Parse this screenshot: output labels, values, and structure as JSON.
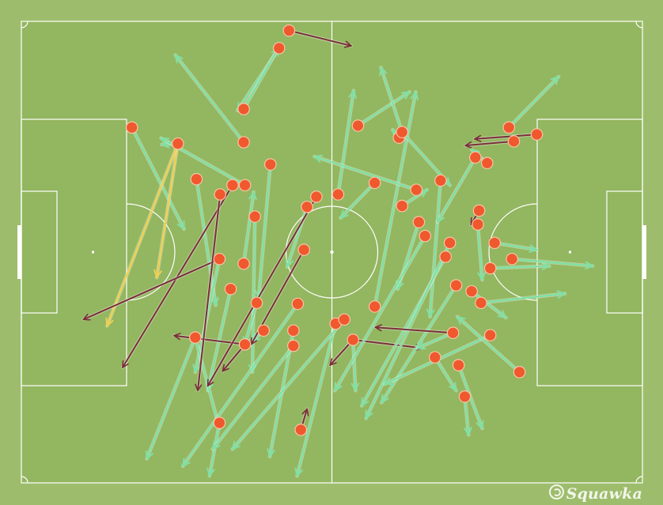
{
  "brand": {
    "watermark": "Squawka"
  },
  "colors": {
    "page_bg": "#9dbd6c",
    "pitch": "#93b660",
    "lines": "#ffffff",
    "successful_pass": "#7fe0a4",
    "unsuccessful_pass": "#7a2e3a",
    "key_pass": "#f0cf52",
    "origin_marker": "#f0582e"
  },
  "chart_data": {
    "type": "pass-map",
    "x_range": [
      0,
      100
    ],
    "y_range": [
      0,
      100
    ],
    "legend": "none",
    "passes": [
      {
        "x1": 43.1,
        "y1": 2.0,
        "x2": 53.1,
        "y2": 5.3,
        "outcome": "unsuccessful"
      },
      {
        "x1": 41.5,
        "y1": 5.8,
        "x2": 34.8,
        "y2": 19.3,
        "outcome": "successful"
      },
      {
        "x1": 35.8,
        "y1": 19.0,
        "x2": 41.4,
        "y2": 5.8,
        "outcome": "successful"
      },
      {
        "x1": 35.8,
        "y1": 26.2,
        "x2": 24.8,
        "y2": 7.3,
        "outcome": "successful"
      },
      {
        "x1": 17.8,
        "y1": 23.0,
        "x2": 26.2,
        "y2": 45.0,
        "outcome": "successful"
      },
      {
        "x1": 25.2,
        "y1": 26.5,
        "x2": 22.6,
        "y2": 26.7,
        "outcome": "successful"
      },
      {
        "x1": 25.2,
        "y1": 26.5,
        "x2": 21.8,
        "y2": 55.5,
        "outcome": "key"
      },
      {
        "x1": 25.2,
        "y1": 26.5,
        "x2": 13.8,
        "y2": 66.0,
        "outcome": "key"
      },
      {
        "x1": 28.2,
        "y1": 34.2,
        "x2": 31.3,
        "y2": 61.5,
        "outcome": "successful"
      },
      {
        "x1": 34.0,
        "y1": 35.5,
        "x2": 16.3,
        "y2": 75.0,
        "outcome": "unsuccessful"
      },
      {
        "x1": 36.0,
        "y1": 35.5,
        "x2": 22.5,
        "y2": 25.3,
        "outcome": "successful"
      },
      {
        "x1": 40.1,
        "y1": 31.0,
        "x2": 38.2,
        "y2": 60.0,
        "outcome": "successful"
      },
      {
        "x1": 37.6,
        "y1": 42.3,
        "x2": 37.2,
        "y2": 76.0,
        "outcome": "successful"
      },
      {
        "x1": 31.9,
        "y1": 51.5,
        "x2": 10.0,
        "y2": 64.6,
        "outcome": "unsuccessful"
      },
      {
        "x1": 31.9,
        "y1": 51.5,
        "x2": 28.0,
        "y2": 76.0,
        "outcome": "successful"
      },
      {
        "x1": 35.8,
        "y1": 52.5,
        "x2": 37.4,
        "y2": 37.0,
        "outcome": "successful"
      },
      {
        "x1": 33.7,
        "y1": 58.0,
        "x2": 30.0,
        "y2": 80.0,
        "outcome": "successful"
      },
      {
        "x1": 36.0,
        "y1": 70.0,
        "x2": 24.6,
        "y2": 68.1,
        "outcome": "unsuccessful"
      },
      {
        "x1": 36.0,
        "y1": 70.0,
        "x2": 32.4,
        "y2": 75.8,
        "outcome": "unsuccessful"
      },
      {
        "x1": 37.9,
        "y1": 61.0,
        "x2": 36.0,
        "y2": 70.0,
        "outcome": "successful"
      },
      {
        "x1": 28.0,
        "y1": 68.5,
        "x2": 20.2,
        "y2": 94.8,
        "outcome": "successful"
      },
      {
        "x1": 28.0,
        "y1": 68.5,
        "x2": 31.9,
        "y2": 88.2,
        "outcome": "successful"
      },
      {
        "x1": 31.9,
        "y1": 87.0,
        "x2": 30.3,
        "y2": 98.5,
        "outcome": "successful"
      },
      {
        "x1": 32.0,
        "y1": 37.5,
        "x2": 28.4,
        "y2": 80.0,
        "outcome": "unsuccessful"
      },
      {
        "x1": 39.0,
        "y1": 67.0,
        "x2": 37.2,
        "y2": 69.3,
        "outcome": "successful"
      },
      {
        "x1": 43.8,
        "y1": 67.0,
        "x2": 40.0,
        "y2": 94.3,
        "outcome": "successful"
      },
      {
        "x1": 43.8,
        "y1": 70.3,
        "x2": 30.8,
        "y2": 92.7,
        "outcome": "successful"
      },
      {
        "x1": 46.0,
        "y1": 40.2,
        "x2": 42.8,
        "y2": 53.2,
        "outcome": "successful"
      },
      {
        "x1": 47.5,
        "y1": 38.0,
        "x2": 30.0,
        "y2": 79.0,
        "outcome": "unsuccessful"
      },
      {
        "x1": 45.5,
        "y1": 49.5,
        "x2": 37.0,
        "y2": 70.0,
        "outcome": "unsuccessful"
      },
      {
        "x1": 44.5,
        "y1": 61.2,
        "x2": 26.0,
        "y2": 96.4,
        "outcome": "successful"
      },
      {
        "x1": 51.0,
        "y1": 37.5,
        "x2": 53.5,
        "y2": 15.0,
        "outcome": "successful"
      },
      {
        "x1": 45.0,
        "y1": 88.5,
        "x2": 46.0,
        "y2": 84.0,
        "outcome": "unsuccessful"
      },
      {
        "x1": 50.6,
        "y1": 65.5,
        "x2": 44.4,
        "y2": 98.5,
        "outcome": "successful"
      },
      {
        "x1": 52.0,
        "y1": 64.6,
        "x2": 34.0,
        "y2": 92.7,
        "outcome": "successful"
      },
      {
        "x1": 56.9,
        "y1": 61.8,
        "x2": 63.5,
        "y2": 15.3,
        "outcome": "successful"
      },
      {
        "x1": 54.2,
        "y1": 22.6,
        "x2": 62.5,
        "y2": 15.3,
        "outcome": "successful"
      },
      {
        "x1": 53.4,
        "y1": 69.0,
        "x2": 49.7,
        "y2": 74.5,
        "outcome": "unsuccessful"
      },
      {
        "x1": 53.4,
        "y1": 69.0,
        "x2": 64.5,
        "y2": 70.8,
        "outcome": "unsuccessful"
      },
      {
        "x1": 53.4,
        "y1": 69.0,
        "x2": 53.8,
        "y2": 80.0,
        "outcome": "successful"
      },
      {
        "x1": 56.9,
        "y1": 35.0,
        "x2": 51.4,
        "y2": 42.6,
        "outcome": "successful"
      },
      {
        "x1": 60.8,
        "y1": 25.2,
        "x2": 59.8,
        "y2": 23.5,
        "outcome": "successful"
      },
      {
        "x1": 61.3,
        "y1": 24.0,
        "x2": 69.0,
        "y2": 35.5,
        "outcome": "successful"
      },
      {
        "x1": 61.3,
        "y1": 24.0,
        "x2": 57.9,
        "y2": 10.0,
        "outcome": "successful"
      },
      {
        "x1": 63.6,
        "y1": 36.5,
        "x2": 47.2,
        "y2": 29.3,
        "outcome": "successful"
      },
      {
        "x1": 61.3,
        "y1": 40.0,
        "x2": 65.3,
        "y2": 36.5,
        "outcome": "successful"
      },
      {
        "x1": 64.0,
        "y1": 43.5,
        "x2": 60.6,
        "y2": 58.0,
        "outcome": "successful"
      },
      {
        "x1": 65.0,
        "y1": 46.5,
        "x2": 50.5,
        "y2": 80.0,
        "outcome": "successful"
      },
      {
        "x1": 67.5,
        "y1": 34.5,
        "x2": 65.8,
        "y2": 64.0,
        "outcome": "successful"
      },
      {
        "x1": 68.3,
        "y1": 51.0,
        "x2": 54.8,
        "y2": 83.3,
        "outcome": "successful"
      },
      {
        "x1": 69.0,
        "y1": 48.0,
        "x2": 55.5,
        "y2": 86.0,
        "outcome": "successful"
      },
      {
        "x1": 70.0,
        "y1": 57.2,
        "x2": 58.0,
        "y2": 82.6,
        "outcome": "successful"
      },
      {
        "x1": 73.1,
        "y1": 29.5,
        "x2": 67.0,
        "y2": 43.5,
        "outcome": "successful"
      },
      {
        "x1": 73.5,
        "y1": 44.0,
        "x2": 74.2,
        "y2": 56.0,
        "outcome": "successful"
      },
      {
        "x1": 72.5,
        "y1": 58.5,
        "x2": 78.0,
        "y2": 64.2,
        "outcome": "successful"
      },
      {
        "x1": 79.3,
        "y1": 26.0,
        "x2": 71.5,
        "y2": 26.9,
        "outcome": "unsuccessful"
      },
      {
        "x1": 75.0,
        "y1": 30.7,
        "x2": 72.5,
        "y2": 27.8,
        "outcome": "successful"
      },
      {
        "x1": 73.7,
        "y1": 41.0,
        "x2": 72.4,
        "y2": 44.0,
        "outcome": "unsuccessful"
      },
      {
        "x1": 75.5,
        "y1": 53.5,
        "x2": 85.0,
        "y2": 53.0,
        "outcome": "successful"
      },
      {
        "x1": 69.5,
        "y1": 67.5,
        "x2": 57.0,
        "y2": 66.3,
        "outcome": "unsuccessful"
      },
      {
        "x1": 69.5,
        "y1": 67.5,
        "x2": 63.8,
        "y2": 70.8,
        "outcome": "successful"
      },
      {
        "x1": 76.2,
        "y1": 48.0,
        "x2": 83.0,
        "y2": 49.5,
        "outcome": "successful"
      },
      {
        "x1": 79.0,
        "y1": 51.5,
        "x2": 92.0,
        "y2": 53.0,
        "outcome": "successful"
      },
      {
        "x1": 75.5,
        "y1": 68.0,
        "x2": 58.5,
        "y2": 78.6,
        "outcome": "successful"
      },
      {
        "x1": 80.2,
        "y1": 76.0,
        "x2": 70.2,
        "y2": 64.0,
        "outcome": "successful"
      },
      {
        "x1": 83.0,
        "y1": 24.5,
        "x2": 73.0,
        "y2": 25.5,
        "outcome": "unsuccessful"
      },
      {
        "x1": 78.5,
        "y1": 23.0,
        "x2": 86.5,
        "y2": 12.0,
        "outcome": "successful"
      },
      {
        "x1": 70.4,
        "y1": 74.5,
        "x2": 74.2,
        "y2": 88.2,
        "outcome": "successful"
      },
      {
        "x1": 66.6,
        "y1": 72.8,
        "x2": 70.0,
        "y2": 80.0,
        "outcome": "successful"
      },
      {
        "x1": 71.4,
        "y1": 81.3,
        "x2": 72.0,
        "y2": 89.6,
        "outcome": "successful"
      },
      {
        "x1": 74.0,
        "y1": 61.0,
        "x2": 87.5,
        "y2": 59.0,
        "outcome": "successful"
      }
    ]
  }
}
